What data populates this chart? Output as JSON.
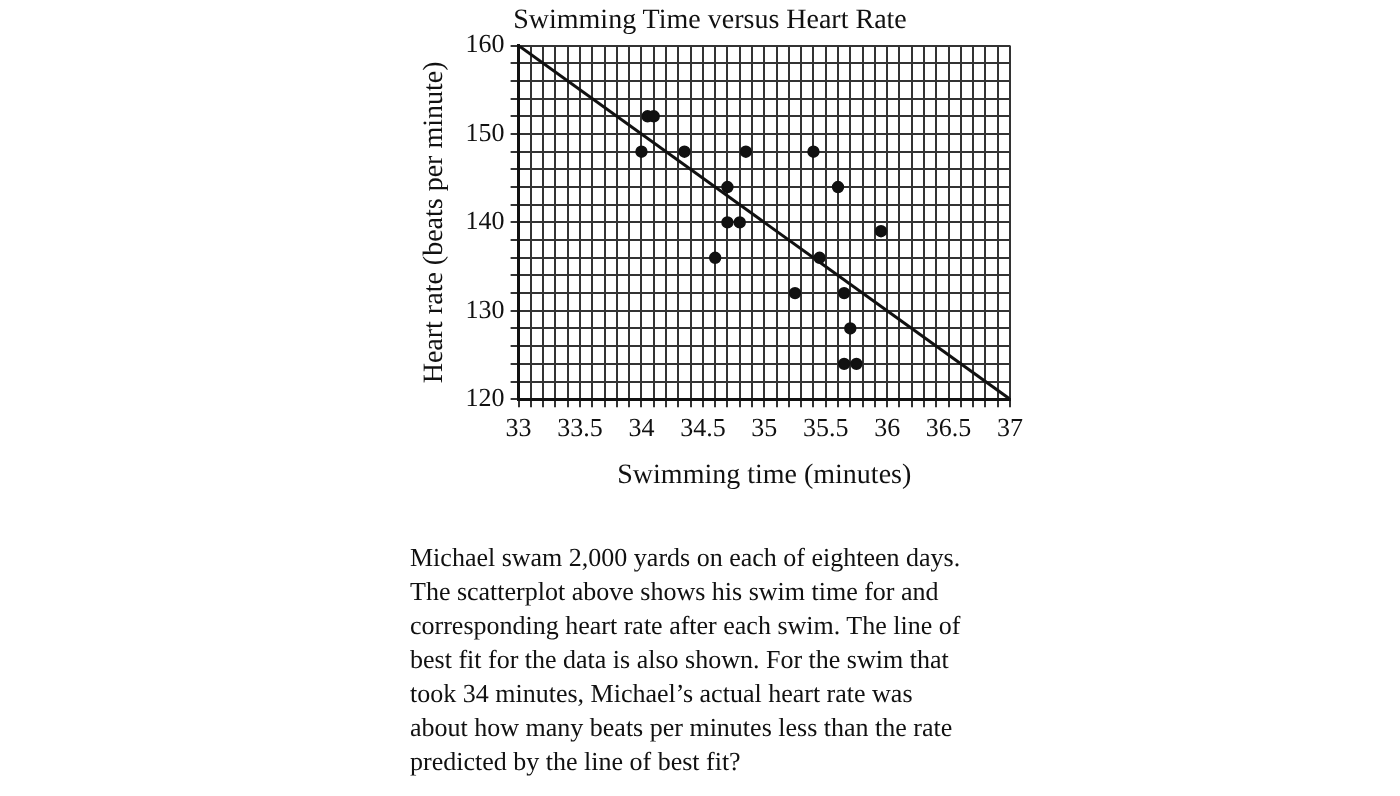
{
  "chart_data": {
    "type": "scatter",
    "title": "Swimming Time versus Heart Rate",
    "xlabel": "Swimming time (minutes)",
    "ylabel": "Heart rate (beats per minute)",
    "series": [
      {
        "type": "scatter",
        "marker": "circle",
        "color": "#111111",
        "x": [
          34.0,
          34.05,
          34.1,
          34.35,
          34.85,
          34.7,
          34.7,
          34.8,
          34.6,
          35.4,
          35.6,
          35.95,
          35.45,
          35.25,
          35.65,
          35.7,
          35.65,
          35.75
        ],
        "values": [
          148,
          152,
          152,
          148,
          148,
          144,
          140,
          140,
          136,
          148,
          144,
          139,
          136,
          132,
          132,
          128,
          124,
          124
        ]
      },
      {
        "type": "line",
        "marker": "none",
        "color": "#111111",
        "x": [
          33,
          37
        ],
        "values": [
          160,
          120
        ]
      }
    ],
    "xlim": [
      33,
      37
    ],
    "ylim": [
      120,
      160
    ],
    "xticks": [
      33,
      {
        "value": 33.1,
        "label": null
      },
      {
        "value": 33.2,
        "label": null
      },
      {
        "value": 33.3,
        "label": null
      },
      {
        "value": 33.4,
        "label": null
      },
      33.5,
      {
        "value": 33.6,
        "label": null
      },
      {
        "value": 33.7,
        "label": null
      },
      {
        "value": 33.8,
        "label": null
      },
      {
        "value": 33.9,
        "label": null
      },
      34,
      {
        "value": 34.1,
        "label": null
      },
      {
        "value": 34.2,
        "label": null
      },
      {
        "value": 34.3,
        "label": null
      },
      {
        "value": 34.4,
        "label": null
      },
      34.5,
      {
        "value": 34.6,
        "label": null
      },
      {
        "value": 34.7,
        "label": null
      },
      {
        "value": 34.8,
        "label": null
      },
      {
        "value": 34.9,
        "label": null
      },
      35,
      {
        "value": 35.1,
        "label": null
      },
      {
        "value": 35.2,
        "label": null
      },
      {
        "value": 35.3,
        "label": null
      },
      {
        "value": 35.4,
        "label": null
      },
      35.5,
      {
        "value": 35.6,
        "label": null
      },
      {
        "value": 35.7,
        "label": null
      },
      {
        "value": 35.8,
        "label": null
      },
      {
        "value": 35.9,
        "label": null
      },
      36,
      {
        "value": 36.1,
        "label": null
      },
      {
        "value": 36.2,
        "label": null
      },
      {
        "value": 36.3,
        "label": null
      },
      {
        "value": 36.4,
        "label": null
      },
      36.5,
      {
        "value": 36.6,
        "label": null
      },
      {
        "value": 36.7,
        "label": null
      },
      {
        "value": 36.8,
        "label": null
      },
      {
        "value": 36.9,
        "label": null
      },
      37
    ],
    "yticks": [
      120,
      {
        "value": 122,
        "label": null
      },
      {
        "value": 124,
        "label": null
      },
      {
        "value": 126,
        "label": null
      },
      {
        "value": 128,
        "label": null
      },
      130,
      {
        "value": 132,
        "label": null
      },
      {
        "value": 134,
        "label": null
      },
      {
        "value": 136,
        "label": null
      },
      {
        "value": 138,
        "label": null
      },
      140,
      {
        "value": 142,
        "label": null
      },
      {
        "value": 144,
        "label": null
      },
      {
        "value": 146,
        "label": null
      },
      {
        "value": 148,
        "label": null
      },
      150,
      {
        "value": 152,
        "label": null
      },
      {
        "value": 154,
        "label": null
      },
      {
        "value": 156,
        "label": null
      },
      {
        "value": 158,
        "label": null
      },
      160
    ],
    "grid": true,
    "legend": false,
    "annotations": [
      "Michael swam 2,000 yards on each of eighteen days.\nThe scatterplot above shows his swim time for and\ncorresponding heart rate after each swim.  The line of\nbest fit for the data is also shown.  For the swim that\ntook 34 minutes, Michael’s actual heart rate was\nabout how many beats per minutes less than the rate\npredicted by the line of best fit?"
    ]
  }
}
